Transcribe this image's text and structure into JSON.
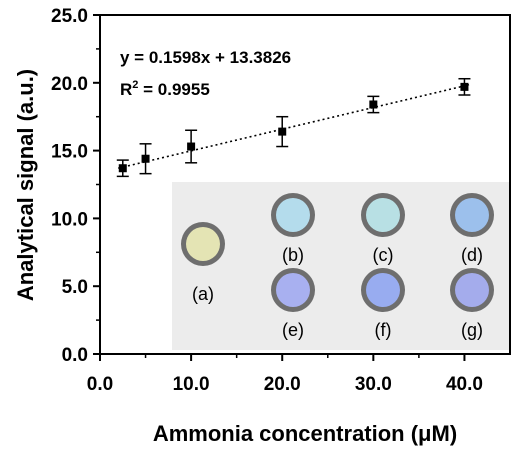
{
  "chart_data": {
    "type": "scatter",
    "xlabel": "Ammonia concentration (μM)",
    "ylabel": "Analytical signal (a.u.)",
    "xlim": [
      0,
      45
    ],
    "ylim": [
      0,
      25
    ],
    "xticks": [
      "0.0",
      "10.0",
      "20.0",
      "30.0",
      "40.0"
    ],
    "yticks": [
      "0.0",
      "5.0",
      "10.0",
      "15.0",
      "20.0",
      "25.0"
    ],
    "grid": false,
    "series": [
      {
        "x": [
          2.5,
          5,
          10,
          20,
          30,
          40
        ],
        "y": [
          13.7,
          14.4,
          15.3,
          16.4,
          18.4,
          19.7
        ],
        "err": [
          0.6,
          1.1,
          1.2,
          1.1,
          0.6,
          0.6
        ]
      }
    ],
    "fit": {
      "type": "linear",
      "slope": 0.1598,
      "intercept": 13.3826,
      "style": "dotted"
    },
    "annotations": {
      "equation": "y = 0.1598x + 13.3826",
      "r2_prefix": "R",
      "r2_sup": "2",
      "r2_suffix": " = 0.9955"
    },
    "inset_photos": [
      {
        "label": "(a)",
        "color": "#e4e4b4"
      },
      {
        "label": "(b)",
        "color": "#b4dcec"
      },
      {
        "label": "(c)",
        "color": "#b8e0e4"
      },
      {
        "label": "(d)",
        "color": "#9cc0ec"
      },
      {
        "label": "(e)",
        "color": "#a8b0f0"
      },
      {
        "label": "(f)",
        "color": "#98acf0"
      },
      {
        "label": "(g)",
        "color": "#a4acec"
      }
    ]
  }
}
